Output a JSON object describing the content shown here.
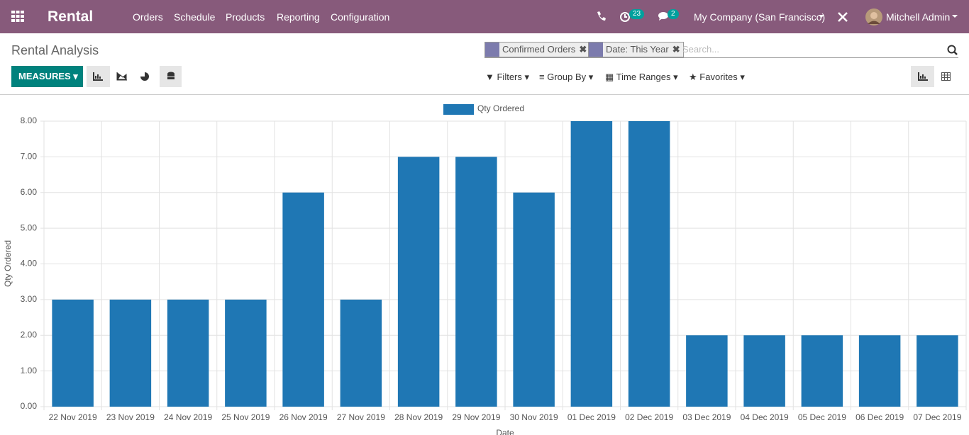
{
  "navbar": {
    "app": "Rental",
    "menu": [
      "Orders",
      "Schedule",
      "Products",
      "Reporting",
      "Configuration"
    ],
    "activity_count": "23",
    "message_count": "2",
    "company": "My Company (San Francisco)",
    "user": "Mitchell Admin"
  },
  "control_panel": {
    "title": "Rental Analysis",
    "facets": [
      "Confirmed Orders",
      "Date: This Year"
    ],
    "search_placeholder": "Search...",
    "measures": "MEASURES",
    "filters": [
      "Filters",
      "Group By",
      "Time Ranges",
      "Favorites"
    ]
  },
  "chart_data": {
    "type": "bar",
    "x_label": "Date",
    "y_label": "Qty Ordered",
    "categories": [
      "22 Nov 2019",
      "23 Nov 2019",
      "24 Nov 2019",
      "25 Nov 2019",
      "26 Nov 2019",
      "27 Nov 2019",
      "28 Nov 2019",
      "29 Nov 2019",
      "30 Nov 2019",
      "01 Dec 2019",
      "02 Dec 2019",
      "03 Dec 2019",
      "04 Dec 2019",
      "05 Dec 2019",
      "06 Dec 2019",
      "07 Dec 2019"
    ],
    "series": [
      {
        "name": "Qty Ordered",
        "color": "#1f77b4",
        "values": [
          3,
          3,
          3,
          3,
          6,
          3,
          7,
          7,
          6,
          8,
          8,
          2,
          2,
          2,
          2,
          2
        ]
      }
    ],
    "ylim": [
      0,
      8
    ],
    "yticks": [
      {
        "value": 0,
        "label": "0.00"
      },
      {
        "value": 1,
        "label": "1.00"
      },
      {
        "value": 2,
        "label": "2.00"
      },
      {
        "value": 3,
        "label": "3.00"
      },
      {
        "value": 4,
        "label": "4.00"
      },
      {
        "value": 5,
        "label": "5.00"
      },
      {
        "value": 6,
        "label": "6.00"
      },
      {
        "value": 7,
        "label": "7.00"
      },
      {
        "value": 8,
        "label": "8.00"
      }
    ],
    "grid": true,
    "legend": "top"
  }
}
